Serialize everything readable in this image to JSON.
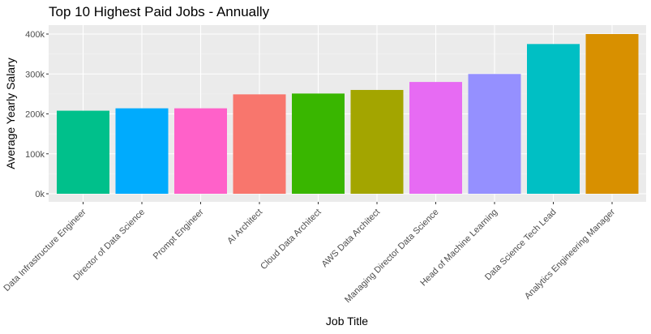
{
  "chart_data": {
    "type": "bar",
    "title": "Top 10 Highest Paid Jobs - Annually",
    "xlabel": "Job Title",
    "ylabel": "Average Yearly Salary",
    "ylim": [
      0,
      400000
    ],
    "y_ticks": [
      0,
      100000,
      200000,
      300000,
      400000
    ],
    "y_tick_labels": [
      "0k",
      "100k",
      "200k",
      "300k",
      "400k"
    ],
    "grid": true,
    "legend": "none",
    "categories": [
      "Data Infrastructure Engineer",
      "Director of Data Science",
      "Prompt Engineer",
      "AI Architect",
      "Cloud Data Architect",
      "AWS Data Architect",
      "Managing Director Data Science",
      "Head of Machine Learning",
      "Data Science Tech Lead",
      "Analytics Engineering Manager"
    ],
    "values": [
      208000,
      214000,
      214000,
      249000,
      251000,
      260000,
      280000,
      300000,
      375000,
      400000
    ],
    "colors": [
      "#00C08B",
      "#00ABFD",
      "#FF61C9",
      "#F8766D",
      "#39B600",
      "#A3A500",
      "#E76BF3",
      "#9590FF",
      "#00BFC4",
      "#D89000"
    ]
  }
}
